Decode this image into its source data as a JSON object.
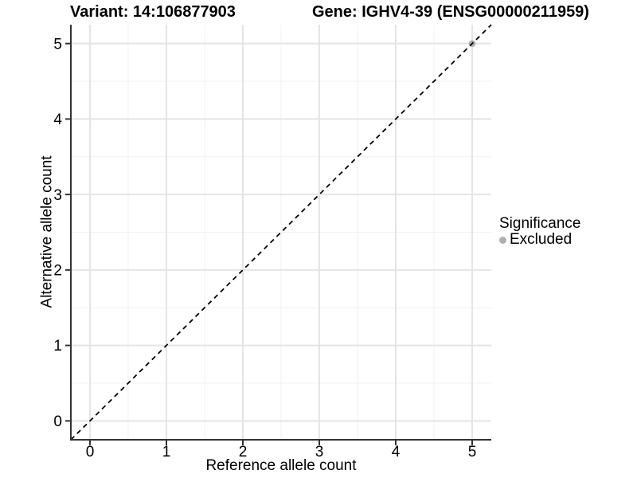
{
  "chart_data": {
    "type": "scatter",
    "titles": {
      "variant": "Variant: 14:106877903",
      "gene": "Gene: IGHV4-39 (ENSG00000211959)"
    },
    "xlabel": "Reference allele count",
    "ylabel": "Alternative allele count",
    "xlim": [
      -0.25,
      5.25
    ],
    "ylim": [
      -0.25,
      5.25
    ],
    "xticks": [
      0,
      1,
      2,
      3,
      4,
      5
    ],
    "yticks": [
      0,
      1,
      2,
      3,
      4,
      5
    ],
    "xticks_minor": [
      0.5,
      1.5,
      2.5,
      3.5,
      4.5
    ],
    "yticks_minor": [
      0.5,
      1.5,
      2.5,
      3.5,
      4.5
    ],
    "grid": "major+minor",
    "identity_line": {
      "style": "dashed",
      "slope": 1,
      "intercept": 0,
      "color": "#000000"
    },
    "series": [
      {
        "name": "Excluded",
        "color": "#b0b0b0",
        "points": [
          {
            "x": 5,
            "y": 5
          }
        ]
      }
    ],
    "legend": {
      "title": "Significance",
      "position": "right",
      "items": [
        {
          "label": "Excluded",
          "color": "#b0b0b0",
          "marker": "circle"
        }
      ]
    },
    "colors": {
      "grid_major": "#e4e4e4",
      "grid_minor": "#f1f1f1",
      "axis": "#333333",
      "tick_text": "#000000"
    }
  }
}
